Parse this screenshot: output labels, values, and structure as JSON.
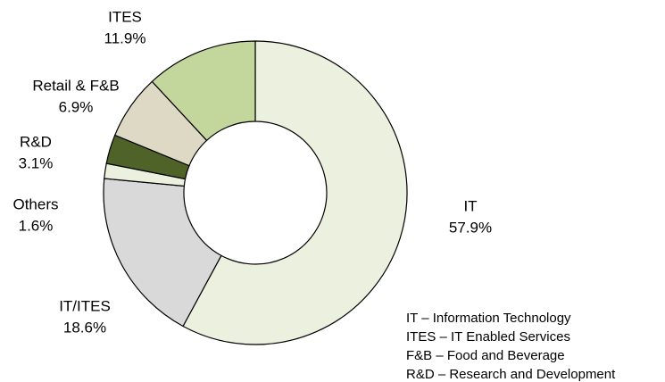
{
  "chart_data": {
    "type": "donut",
    "categories": [
      "IT",
      "IT/ITES",
      "Others",
      "R&D",
      "Retail & F&B",
      "ITES"
    ],
    "values": [
      57.9,
      18.6,
      1.6,
      3.1,
      6.9,
      11.9
    ],
    "value_labels": [
      "57.9%",
      "18.6%",
      "1.6%",
      "3.1%",
      "6.9%",
      "11.9%"
    ],
    "colors": [
      "#ebf1de",
      "#d9d9d9",
      "#ebf1de",
      "#4f6228",
      "#ddd9c4",
      "#c3d69b"
    ],
    "notes": [
      "IT – Information Technology",
      "ITES – IT Enabled Services",
      "F&B – Food and Beverage",
      "R&D – Research and Development"
    ]
  }
}
